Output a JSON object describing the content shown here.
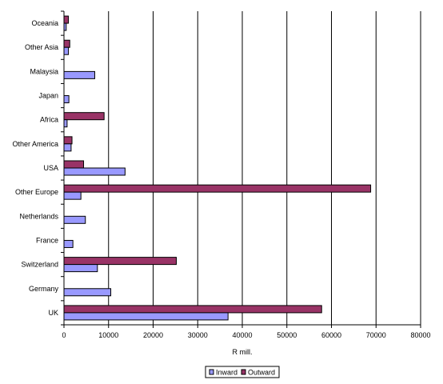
{
  "chart_data": {
    "type": "bar",
    "orientation": "horizontal",
    "categories": [
      "UK",
      "Germany",
      "Switzerland",
      "France",
      "Netherlands",
      "Other Europe",
      "USA",
      "Other America",
      "Africa",
      "Japan",
      "Malaysia",
      "Other Asia",
      "Oceania"
    ],
    "series": [
      {
        "name": "Inward",
        "values": [
          36800,
          10500,
          7500,
          2000,
          4800,
          3800,
          13700,
          1600,
          700,
          1100,
          6900,
          1000,
          500
        ],
        "color": "#9999ff"
      },
      {
        "name": "Outward",
        "values": [
          57800,
          0,
          25200,
          0,
          0,
          68800,
          4400,
          1800,
          9000,
          0,
          0,
          1300,
          1000
        ],
        "color": "#993366"
      }
    ],
    "xlabel": "R mill.",
    "ylabel": "",
    "xlim": [
      0,
      80000
    ],
    "xticks": [
      "0",
      "10000",
      "20000",
      "30000",
      "40000",
      "50000",
      "60000",
      "70000",
      "80000"
    ],
    "grid": "vertical",
    "legend": "bottom-center"
  }
}
